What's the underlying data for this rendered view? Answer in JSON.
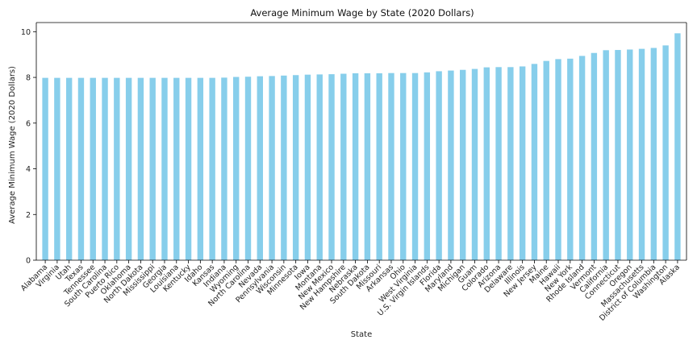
{
  "chart_data": {
    "type": "bar",
    "title": "Average Minimum Wage by State (2020 Dollars)",
    "xlabel": "State",
    "ylabel": "Average Minimum Wage (2020 Dollars)",
    "ylim": [
      0,
      10.4
    ],
    "yticks": [
      0,
      2,
      4,
      6,
      8,
      10
    ],
    "grid": false,
    "bar_color": "#87CEEB",
    "categories": [
      "Alabama",
      "Virginia",
      "Utah",
      "Texas",
      "Tennessee",
      "South Carolina",
      "Puerto Rico",
      "Oklahoma",
      "North Dakota",
      "Mississippi",
      "Georgia",
      "Louisiana",
      "Kentucky",
      "Idaho",
      "Kansas",
      "Indiana",
      "Wyoming",
      "North Carolina",
      "Nevada",
      "Pennsylvania",
      "Wisconsin",
      "Minnesota",
      "Iowa",
      "Montana",
      "New Mexico",
      "New Hampshire",
      "Nebraska",
      "South Dakota",
      "Missouri",
      "Arkansas",
      "Ohio",
      "West Virginia",
      "U.S. Virgin Islands",
      "Florida",
      "Maryland",
      "Michigan",
      "Guam",
      "Colorado",
      "Arizona",
      "Delaware",
      "Illinois",
      "New Jersey",
      "Maine",
      "Hawaii",
      "New York",
      "Rhode Island",
      "Vermont",
      "California",
      "Connecticut",
      "Oregon",
      "Massachusetts",
      "District of Columbia",
      "Washington",
      "Alaska"
    ],
    "values": [
      7.98,
      7.98,
      7.98,
      7.98,
      7.98,
      7.98,
      7.98,
      7.98,
      7.98,
      7.98,
      7.98,
      7.98,
      7.98,
      7.98,
      7.98,
      7.99,
      8.02,
      8.03,
      8.05,
      8.06,
      8.08,
      8.1,
      8.12,
      8.13,
      8.14,
      8.16,
      8.18,
      8.18,
      8.18,
      8.19,
      8.19,
      8.19,
      8.22,
      8.27,
      8.3,
      8.33,
      8.37,
      8.44,
      8.45,
      8.45,
      8.48,
      8.59,
      8.72,
      8.8,
      8.82,
      8.94,
      9.07,
      9.19,
      9.2,
      9.22,
      9.25,
      9.29,
      9.4,
      9.93
    ]
  }
}
